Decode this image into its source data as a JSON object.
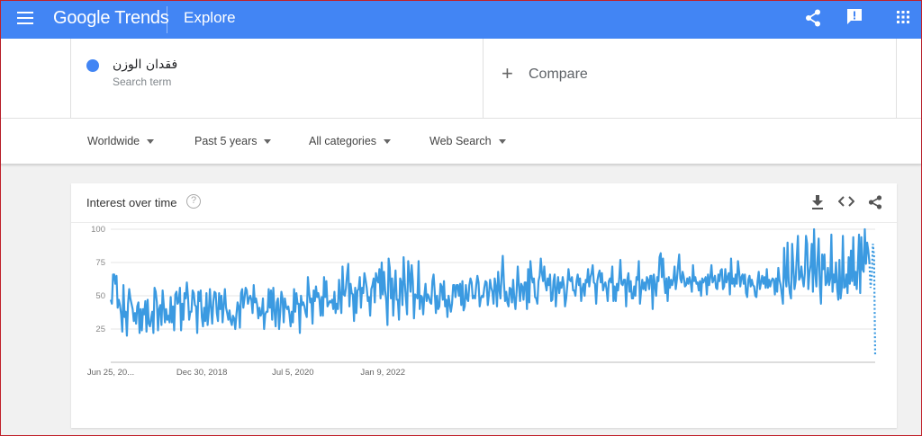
{
  "topbar": {
    "logo_google": "Google",
    "logo_trends": "Trends",
    "section": "Explore",
    "icons": [
      "menu-icon",
      "share-icon",
      "feedback-icon",
      "apps-icon"
    ]
  },
  "search": {
    "term": "فقدان الوزن",
    "term_sub": "Search term",
    "term_color": "#4285f4",
    "compare_plus": "+",
    "compare_label": "Compare"
  },
  "filters": {
    "region": "Worldwide",
    "time": "Past 5 years",
    "category": "All categories",
    "property": "Web Search"
  },
  "card": {
    "title": "Interest over time",
    "help": "?",
    "icons": [
      "download-icon",
      "embed-icon",
      "share-icon"
    ]
  },
  "chart_data": {
    "type": "line",
    "title": "Interest over time",
    "yticks": [
      25,
      50,
      75,
      100
    ],
    "ylim": [
      0,
      100
    ],
    "xticks": [
      {
        "label": "Jun 25, 20...",
        "index": 0
      },
      {
        "label": "Dec 30, 2018",
        "index": 79
      },
      {
        "label": "Jul 5, 2020",
        "index": 158
      },
      {
        "label": "Jan 9, 2022",
        "index": 236
      }
    ],
    "grid": true,
    "series": [
      {
        "color": "#3b9ae1",
        "partial_last": 5,
        "values": [
          47,
          44,
          66,
          66,
          59,
          65,
          41,
          47,
          43,
          36,
          23,
          58,
          34,
          38,
          20,
          44,
          55,
          48,
          44,
          40,
          31,
          37,
          29,
          42,
          45,
          22,
          40,
          24,
          40,
          36,
          46,
          23,
          47,
          29,
          27,
          33,
          38,
          22,
          56,
          53,
          45,
          24,
          40,
          43,
          28,
          54,
          43,
          30,
          40,
          32,
          35,
          30,
          49,
          30,
          42,
          24,
          51,
          53,
          44,
          46,
          56,
          24,
          44,
          32,
          52,
          48,
          60,
          49,
          32,
          38,
          38,
          54,
          52,
          43,
          42,
          22,
          53,
          46,
          54,
          34,
          27,
          41,
          31,
          52,
          28,
          38,
          55,
          41,
          29,
          46,
          53,
          52,
          37,
          31,
          52,
          40,
          50,
          30,
          43,
          55,
          41,
          37,
          32,
          39,
          31,
          28,
          35,
          33,
          25,
          36,
          45,
          42,
          26,
          52,
          55,
          41,
          48,
          56,
          54,
          44,
          48,
          50,
          47,
          37,
          58,
          45,
          48,
          43,
          33,
          41,
          35,
          37,
          48,
          25,
          36,
          38,
          38,
          55,
          41,
          54,
          32,
          56,
          39,
          27,
          45,
          48,
          25,
          38,
          53,
          48,
          30,
          48,
          42,
          40,
          42,
          36,
          27,
          38,
          30,
          55,
          38,
          52,
          44,
          44,
          22,
          50,
          43,
          45,
          42,
          37,
          34,
          64,
          53,
          45,
          48,
          29,
          54,
          46,
          57,
          49,
          52,
          47,
          35,
          49,
          35,
          64,
          49,
          61,
          42,
          44,
          46,
          45,
          47,
          40,
          53,
          37,
          44,
          40,
          62,
          49,
          37,
          72,
          51,
          50,
          56,
          66,
          74,
          42,
          59,
          52,
          51,
          31,
          56,
          37,
          54,
          55,
          64,
          41,
          56,
          52,
          67,
          62,
          56,
          46,
          49,
          35,
          55,
          58,
          63,
          45,
          67,
          62,
          60,
          70,
          48,
          75,
          51,
          68,
          54,
          46,
          28,
          78,
          71,
          48,
          63,
          35,
          54,
          69,
          47,
          47,
          32,
          63,
          60,
          43,
          79,
          60,
          48,
          36,
          76,
          66,
          53,
          73,
          61,
          33,
          51,
          50,
          48,
          76,
          40,
          50,
          49,
          36,
          50,
          59,
          46,
          51,
          49,
          45,
          44,
          61,
          66,
          53,
          37,
          50,
          40,
          42,
          59,
          57,
          47,
          61,
          42,
          47,
          34,
          50,
          44,
          38,
          44,
          58,
          58,
          49,
          58,
          58,
          50,
          59,
          43,
          61,
          39,
          42,
          58,
          48,
          46,
          58,
          63,
          60,
          48,
          50,
          48,
          58,
          65,
          60,
          42,
          48,
          50,
          49,
          56,
          61,
          60,
          43,
          51,
          62,
          56,
          53,
          44,
          63,
          57,
          42,
          68,
          55,
          48,
          65,
          80,
          60,
          46,
          53,
          45,
          42,
          56,
          55,
          45,
          62,
          48,
          40,
          53,
          72,
          58,
          46,
          59,
          57,
          47,
          60,
          60,
          40,
          70,
          45,
          76,
          65,
          60,
          63,
          49,
          48,
          44,
          61,
          65,
          78,
          67,
          61,
          72,
          59,
          54,
          63,
          58,
          66,
          46,
          47,
          61,
          66,
          42,
          55,
          64,
          52,
          60,
          56,
          64,
          58,
          42,
          48,
          58,
          70,
          62,
          61,
          64,
          54,
          54,
          50,
          61,
          66,
          58,
          63,
          46,
          55,
          59,
          50,
          62,
          60,
          70,
          57,
          64,
          67,
          73,
          60,
          59,
          44,
          61,
          66,
          69,
          60,
          67,
          54,
          58,
          60,
          55,
          46,
          61,
          63,
          60,
          72,
          46,
          57,
          46,
          59,
          54,
          63,
          77,
          59,
          58,
          62,
          62,
          42,
          62,
          67,
          53,
          61,
          48,
          48,
          57,
          50,
          64,
          62,
          76,
          44,
          54,
          62,
          55,
          60,
          54,
          64,
          62,
          55,
          65,
          65,
          40,
          66,
          58,
          50,
          64,
          61,
          79,
          82,
          64,
          78,
          62,
          52,
          63,
          46,
          64,
          56,
          62,
          58,
          62,
          72,
          55,
          62,
          72,
          81,
          63,
          60,
          68,
          64,
          57,
          58,
          63,
          59,
          64,
          60,
          53,
          73,
          61,
          64,
          59,
          60,
          54,
          61,
          50,
          63,
          60,
          62,
          64,
          51,
          66,
          58,
          64,
          73,
          60,
          62,
          65,
          56,
          55,
          66,
          61,
          69,
          70,
          55,
          57,
          70,
          60,
          64,
          67,
          51,
          78,
          59,
          63,
          57,
          66,
          59,
          76,
          68,
          57,
          64,
          66,
          59,
          66,
          52,
          49,
          62,
          65,
          57,
          62,
          58,
          57,
          50,
          49,
          61,
          68,
          55,
          60,
          65,
          59,
          64,
          56,
          70,
          56,
          62,
          57,
          61,
          63,
          62,
          51,
          63,
          53,
          71,
          62,
          58,
          51,
          44,
          86,
          65,
          57,
          90,
          61,
          52,
          48,
          89,
          72,
          55,
          61,
          79,
          95,
          62,
          64,
          72,
          63,
          57,
          67,
          95,
          89,
          55,
          67,
          73,
          89,
          53,
          100,
          67,
          57,
          77,
          93,
          58,
          44,
          81,
          70,
          81,
          58,
          60,
          71,
          58,
          63,
          96,
          53,
          66,
          60,
          75,
          56,
          47,
          77,
          48,
          56,
          95,
          56,
          57,
          66,
          52,
          79,
          59,
          84,
          61,
          94,
          58,
          68,
          55,
          73,
          96,
          52,
          94,
          70,
          68,
          100,
          74,
          90,
          84,
          75,
          56,
          64,
          89,
          80,
          5
        ]
      }
    ]
  }
}
